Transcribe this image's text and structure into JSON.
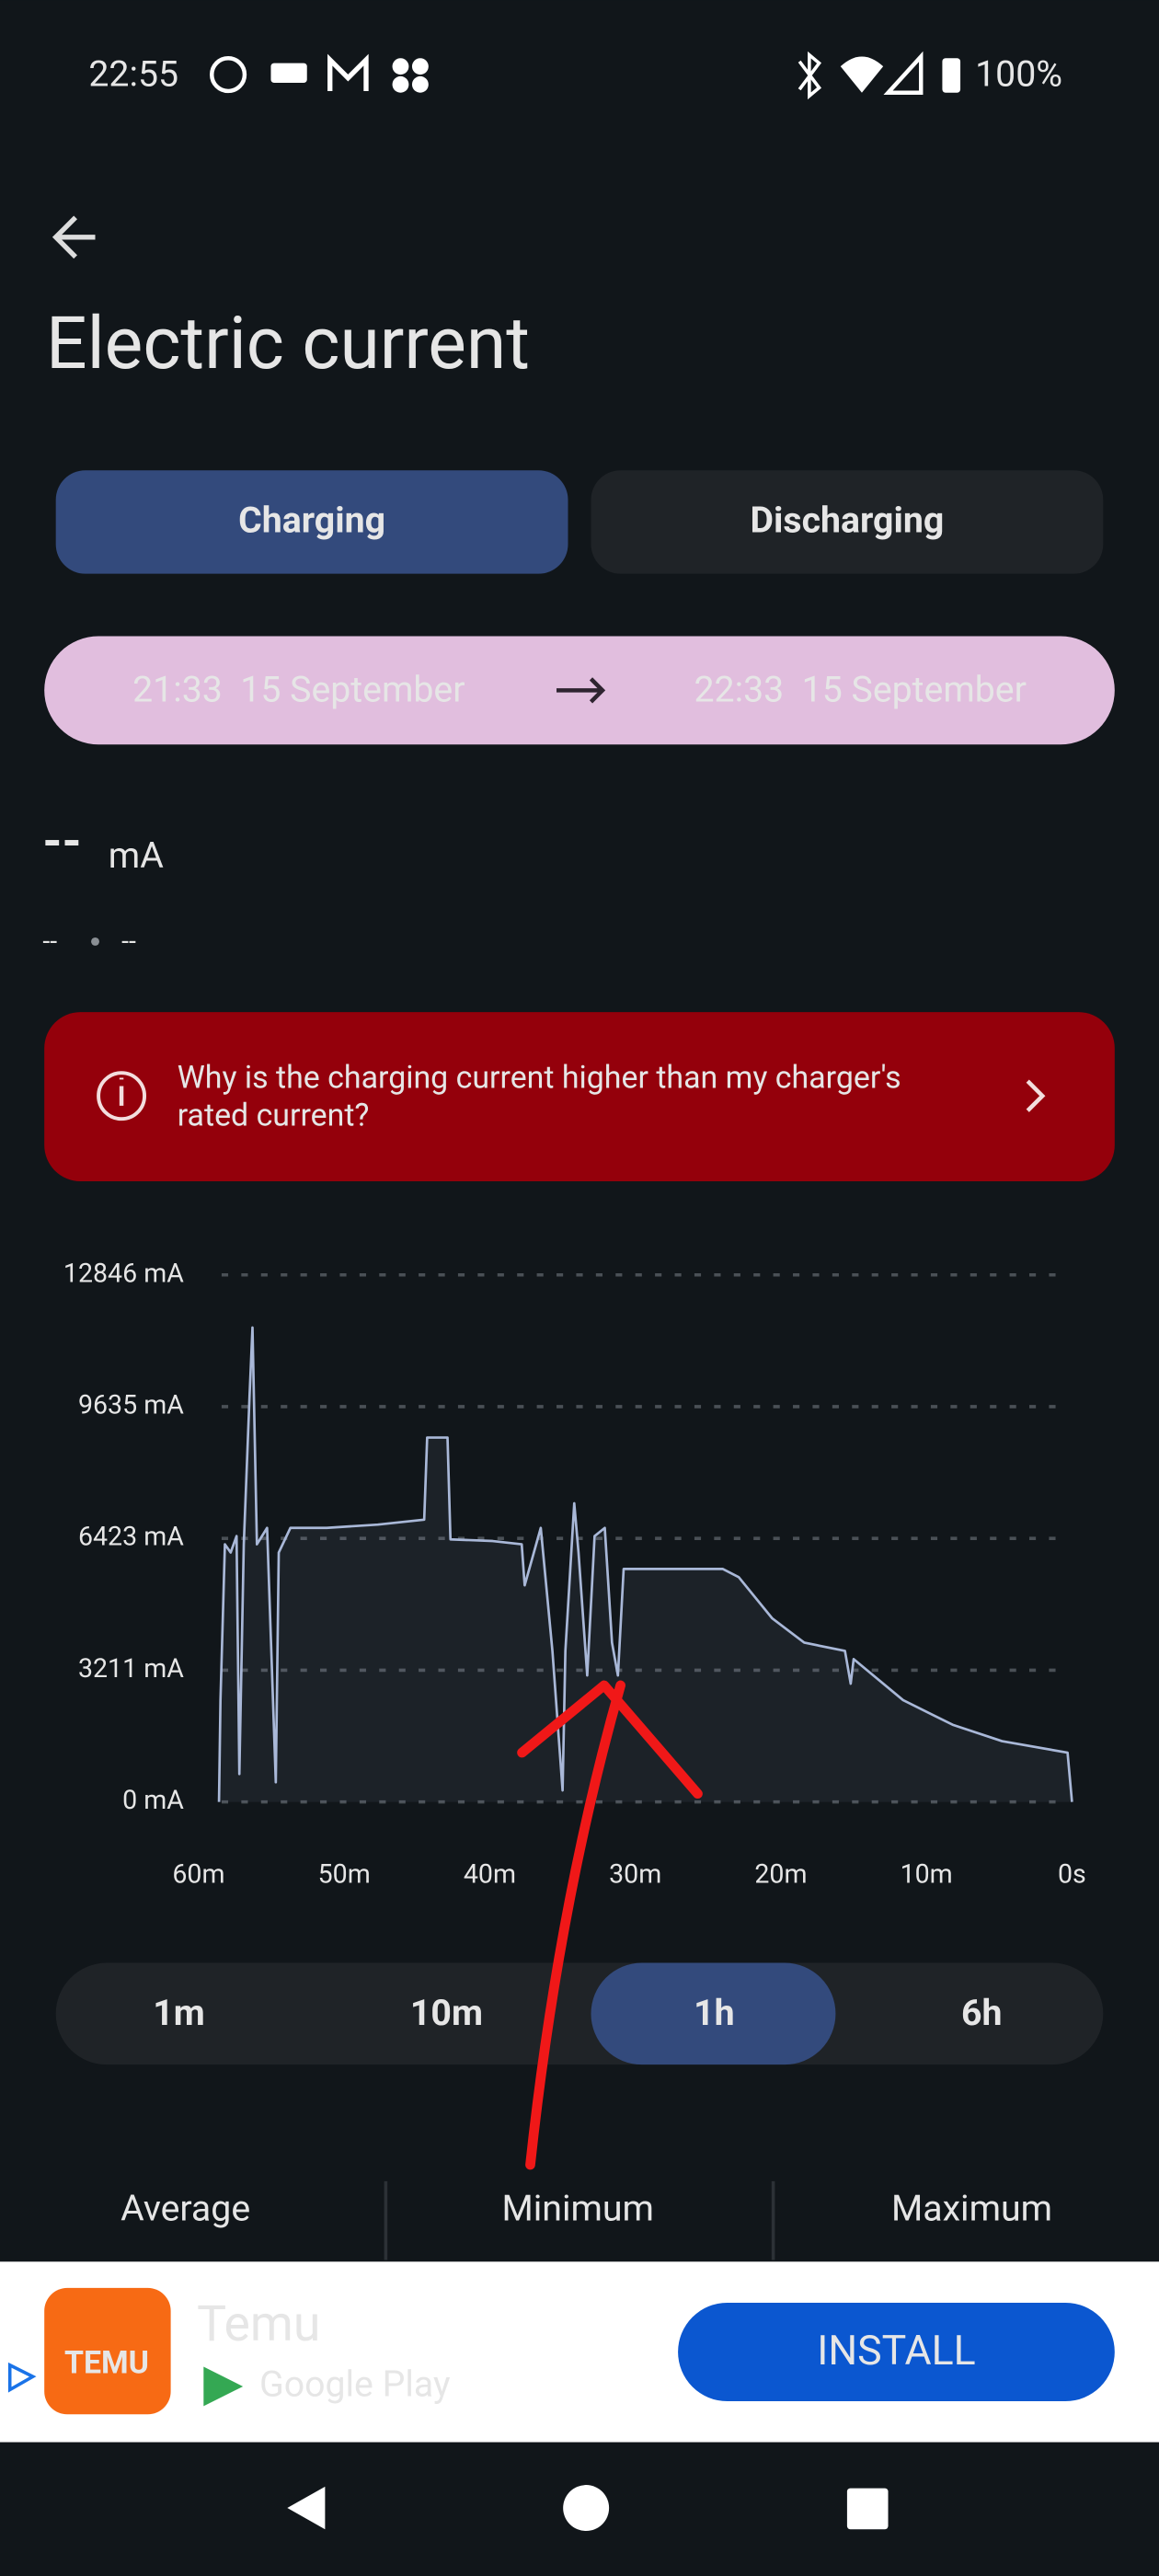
{
  "status_bar": {
    "time": "22:55",
    "battery": "100%"
  },
  "header": {
    "title": "Electric current"
  },
  "tabs": [
    "Charging",
    "Discharging"
  ],
  "time_range": {
    "start": "21:33  15 September",
    "end": "22:33  15 September"
  },
  "reading": {
    "value": "--",
    "unit": "mA",
    "detail_left": "--",
    "detail_right": "--"
  },
  "info_banner": {
    "lines": [
      "Why is the charging current higher than my charger's",
      "rated current?"
    ]
  },
  "chart_data": {
    "type": "line",
    "color": "#a9b8d8",
    "x": [
      58.6,
      58.5,
      58.2,
      57.8,
      57.4,
      57.2,
      56.9,
      56.5,
      56.3,
      56.0,
      55.3,
      54.7,
      54.5,
      53.7,
      51.2,
      47.7,
      44.5,
      44.3,
      42.9,
      42.7,
      39.8,
      37.8,
      37.6,
      36.5,
      35.7,
      35.0,
      34.8,
      34.5,
      34.2,
      33.9,
      33.3,
      32.8,
      32.1,
      31.6,
      31.2,
      30.8,
      28.5,
      24.0,
      22.9,
      20.6,
      18.4,
      15.6,
      15.2,
      15.0,
      11.6,
      8.2,
      4.8,
      0.3,
      0
    ],
    "values": [
      0,
      2480,
      6280,
      6080,
      6480,
      680,
      6280,
      9880,
      11560,
      6280,
      6680,
      480,
      6080,
      6680,
      6680,
      6760,
      6880,
      8880,
      8880,
      6400,
      6360,
      6280,
      5280,
      6680,
      3680,
      280,
      3680,
      5480,
      7280,
      6080,
      3080,
      6480,
      6680,
      3880,
      3080,
      5680,
      5680,
      5680,
      5480,
      4480,
      3880,
      3680,
      2880,
      3480,
      2480,
      1880,
      1480,
      1200,
      0
    ],
    "xlim": [
      60,
      0
    ],
    "xticks": [
      {
        "value": 60,
        "label": "60m"
      },
      {
        "value": 50,
        "label": "50m"
      },
      {
        "value": 40,
        "label": "40m"
      },
      {
        "value": 30,
        "label": "30m"
      },
      {
        "value": 20,
        "label": "20m"
      },
      {
        "value": 10,
        "label": "10m"
      },
      {
        "value": 0,
        "label": "0s"
      }
    ],
    "ylim": [
      0,
      12846
    ],
    "yticks": [
      {
        "value": 0,
        "label": "0 mA"
      },
      {
        "value": 3211,
        "label": "3211 mA"
      },
      {
        "value": 6423,
        "label": "6423 mA"
      },
      {
        "value": 9635,
        "label": "9635 mA"
      },
      {
        "value": 12846,
        "label": "12846 mA"
      }
    ],
    "grid": true
  },
  "range_buttons": [
    "1m",
    "10m",
    "1h",
    "6h"
  ],
  "stats": [
    "Average",
    "Minimum",
    "Maximum"
  ],
  "ad": {
    "logo": "TEMU",
    "name": "Temu",
    "store": "Google Play",
    "button": "INSTALL"
  }
}
